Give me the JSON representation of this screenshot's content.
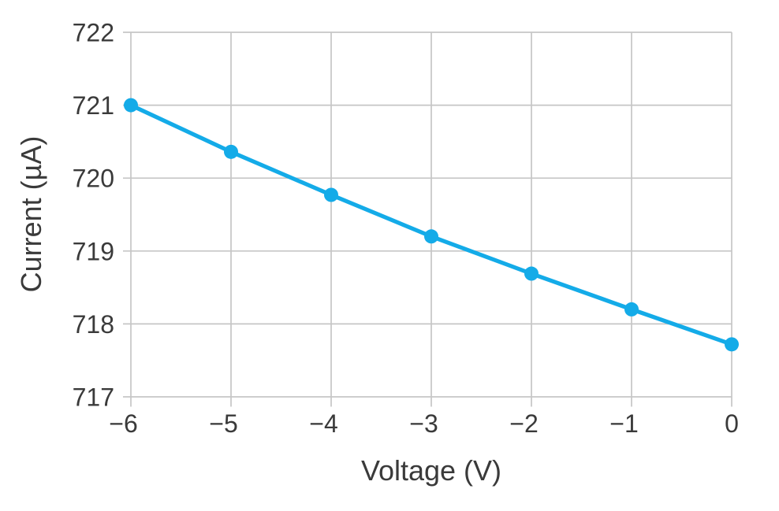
{
  "chart_data": {
    "type": "line",
    "title": "",
    "xlabel": "Voltage (V)",
    "ylabel": "Current (µA)",
    "x": [
      -6,
      -5,
      -4,
      -3,
      -2,
      -1,
      0
    ],
    "series": [
      {
        "name": "current",
        "values": [
          721.0,
          720.36,
          719.77,
          719.2,
          718.69,
          718.2,
          717.72
        ]
      }
    ],
    "xlim": [
      -6,
      0
    ],
    "ylim": [
      717,
      722
    ],
    "x_ticks": [
      {
        "value": -6,
        "label": "−6"
      },
      {
        "value": -5,
        "label": "−5"
      },
      {
        "value": -4,
        "label": "−4"
      },
      {
        "value": -3,
        "label": "−3"
      },
      {
        "value": -2,
        "label": "−2"
      },
      {
        "value": -1,
        "label": "−1"
      },
      {
        "value": 0,
        "label": "0"
      }
    ],
    "y_ticks": [
      {
        "value": 717,
        "label": "717"
      },
      {
        "value": 718,
        "label": "718"
      },
      {
        "value": 719,
        "label": "719"
      },
      {
        "value": 720,
        "label": "720"
      },
      {
        "value": 721,
        "label": "721"
      },
      {
        "value": 722,
        "label": "722"
      }
    ],
    "grid": true,
    "legend": "none",
    "colors": {
      "line": "#14abe8",
      "marker": "#14abe8",
      "grid": "#c6c6c6",
      "text": "#3a3a3a",
      "background": "#ffffff"
    }
  }
}
